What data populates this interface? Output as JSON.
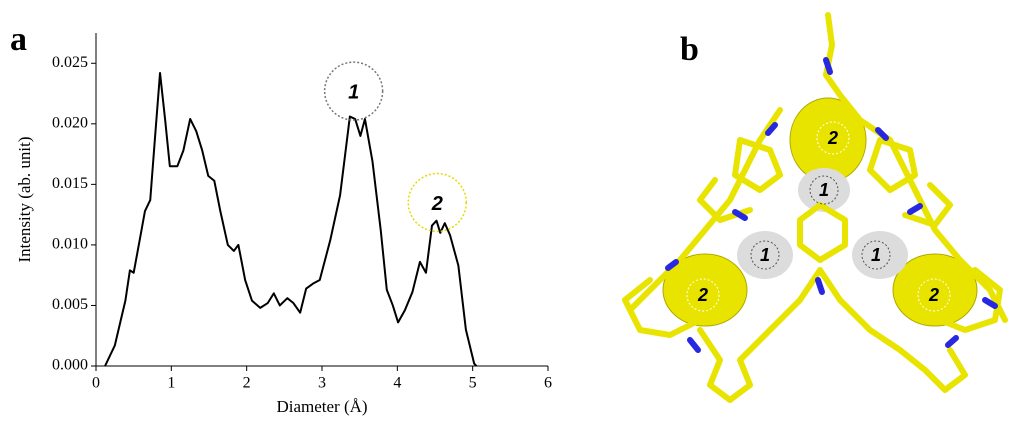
{
  "panel_a_label": "a",
  "chart_data": {
    "type": "line",
    "x_label": "Diameter (Å)",
    "y_label": "Intensity (ab. unit)",
    "xlim": [
      0,
      6
    ],
    "xticks": [
      0,
      1,
      2,
      3,
      4,
      5,
      6
    ],
    "ylim": [
      0,
      0.0275
    ],
    "yticks": [
      {
        "value": 0,
        "label": "0.000"
      },
      0.005,
      {
        "value": 0.01,
        "label": "0.010"
      },
      0.015,
      {
        "value": 0.02,
        "label": "0.020"
      },
      0.025
    ],
    "color": "#000000",
    "x": [
      0.12,
      0.25,
      0.39,
      0.45,
      0.5,
      0.58,
      0.65,
      0.72,
      0.78,
      0.85,
      0.92,
      0.98,
      1.08,
      1.16,
      1.25,
      1.33,
      1.41,
      1.49,
      1.57,
      1.65,
      1.75,
      1.83,
      1.89,
      1.98,
      2.07,
      2.18,
      2.28,
      2.36,
      2.44,
      2.54,
      2.62,
      2.71,
      2.79,
      2.88,
      2.97,
      3.11,
      3.24,
      3.37,
      3.44,
      3.51,
      3.57,
      3.67,
      3.78,
      3.86,
      3.94,
      4.01,
      4.1,
      4.2,
      4.3,
      4.38,
      4.46,
      4.52,
      4.57,
      4.63,
      4.7,
      4.81,
      4.91,
      5.02,
      5.05
    ],
    "values": [
      0,
      0.0017,
      0.0054,
      0.0079,
      0.0077,
      0.0104,
      0.0128,
      0.0137,
      0.0186,
      0.0242,
      0.0202,
      0.0165,
      0.0165,
      0.0178,
      0.0204,
      0.0194,
      0.0178,
      0.0157,
      0.0153,
      0.0128,
      0.01,
      0.0095,
      0.01,
      0.0071,
      0.0054,
      0.0048,
      0.0052,
      0.006,
      0.005,
      0.0056,
      0.0052,
      0.0044,
      0.0064,
      0.0068,
      0.0071,
      0.0104,
      0.0141,
      0.0206,
      0.0204,
      0.019,
      0.0204,
      0.0169,
      0.0112,
      0.0063,
      0.005,
      0.0036,
      0.0046,
      0.0061,
      0.0086,
      0.0077,
      0.0116,
      0.012,
      0.011,
      0.0118,
      0.0108,
      0.0083,
      0.003,
      0.0002,
      0
    ],
    "annotations": [
      {
        "text": "1",
        "x": 3.42,
        "y": 0.0227,
        "color": "#777777"
      },
      {
        "text": "2",
        "x": 4.53,
        "y": 0.0135,
        "color": "#e8d800"
      }
    ]
  },
  "panel_b": {
    "label": "b",
    "pore_labels": [
      "1",
      "1",
      "1",
      "2",
      "2",
      "2"
    ]
  }
}
